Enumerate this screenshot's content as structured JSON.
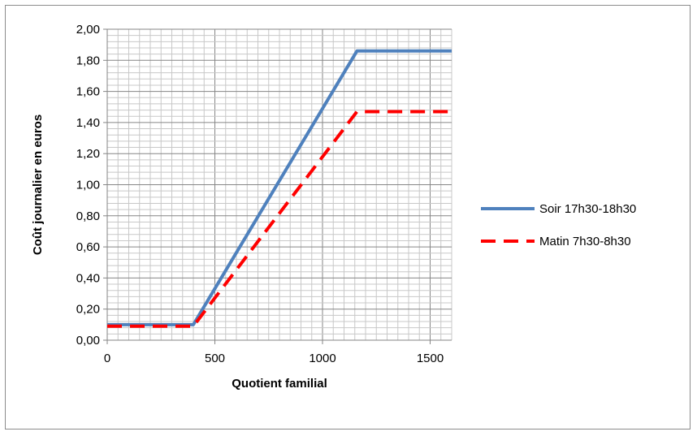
{
  "chart_data": {
    "type": "line",
    "xlabel": "Quotient familial",
    "ylabel": "Coût journalier  en euros",
    "xlim": [
      0,
      1600
    ],
    "ylim": [
      0,
      2.0
    ],
    "x_ticks": [
      0,
      500,
      1000,
      1500
    ],
    "x_tick_labels": [
      "0",
      "500",
      "1000",
      "1500"
    ],
    "y_ticks": [
      0,
      0.2,
      0.4,
      0.6,
      0.8,
      1.0,
      1.2,
      1.4,
      1.6,
      1.8,
      2.0
    ],
    "y_tick_labels": [
      "0,00",
      "0,20",
      "0,40",
      "0,60",
      "0,80",
      "1,00",
      "1,20",
      "1,40",
      "1,60",
      "1,80",
      "2,00"
    ],
    "grid": true,
    "legend_position": "right",
    "series": [
      {
        "name": "Soir 17h30-18h30",
        "color": "#4f81bd",
        "style": "solid",
        "points": [
          [
            0,
            0.1
          ],
          [
            400,
            0.1
          ],
          [
            1160,
            1.86
          ],
          [
            1600,
            1.86
          ]
        ]
      },
      {
        "name": "Matin 7h30-8h30",
        "color": "#ff0000",
        "style": "dashed",
        "points": [
          [
            0,
            0.09
          ],
          [
            400,
            0.09
          ],
          [
            1160,
            1.47
          ],
          [
            1600,
            1.47
          ]
        ]
      }
    ]
  }
}
